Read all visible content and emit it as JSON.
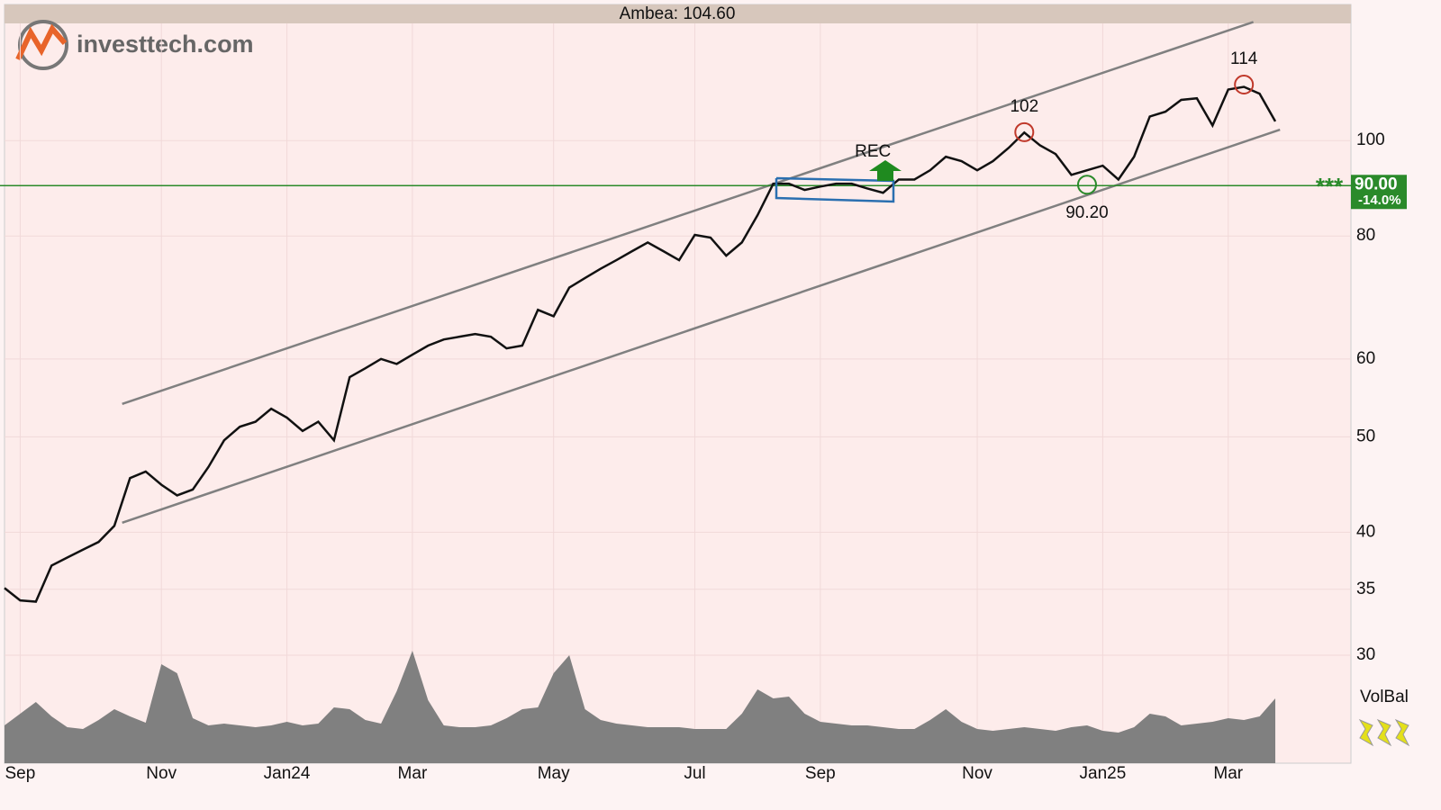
{
  "chart_data": {
    "type": "line",
    "title": "Ambea: 104.60",
    "logo": "investtech.com",
    "log_scale": true,
    "grid": true,
    "ylim": [
      23.3,
      131
    ],
    "yticks": [
      30,
      35,
      40,
      50,
      60,
      80,
      100
    ],
    "categories": [
      null,
      "Sep",
      null,
      null,
      null,
      null,
      null,
      null,
      null,
      null,
      "Nov",
      null,
      null,
      null,
      null,
      null,
      null,
      null,
      "Jan24",
      null,
      null,
      null,
      null,
      null,
      null,
      null,
      "Mar",
      null,
      null,
      null,
      null,
      null,
      null,
      null,
      null,
      "May",
      null,
      null,
      null,
      null,
      null,
      null,
      null,
      null,
      "Jul",
      null,
      null,
      null,
      null,
      null,
      null,
      null,
      "Sep",
      null,
      null,
      null,
      null,
      null,
      null,
      null,
      null,
      null,
      "Nov",
      null,
      null,
      null,
      null,
      null,
      null,
      null,
      "Jan25",
      null,
      null,
      null,
      null,
      null,
      null,
      null,
      "Mar",
      null,
      null,
      null
    ],
    "series": [
      {
        "name": "Ambea",
        "color": "#111111",
        "values": [
          35.1,
          34.1,
          34.0,
          37.0,
          37.7,
          38.4,
          39.1,
          40.6,
          45.4,
          46.1,
          44.7,
          43.6,
          44.2,
          46.6,
          49.6,
          51.2,
          51.8,
          53.4,
          52.3,
          50.7,
          51.8,
          49.6,
          57.5,
          58.7,
          60.0,
          59.3,
          60.6,
          61.9,
          62.8,
          63.2,
          63.6,
          63.2,
          61.5,
          61.9,
          67.3,
          66.3,
          70.9,
          72.5,
          74.1,
          75.6,
          77.2,
          78.8,
          77.2,
          75.6,
          80.2,
          79.7,
          76.4,
          78.8,
          84.0,
          90.4,
          90.4,
          89.1,
          89.8,
          90.4,
          90.4,
          89.4,
          88.5,
          91.3,
          91.3,
          93.3,
          96.3,
          95.3,
          93.3,
          95.3,
          98.3,
          101.9,
          98.9,
          96.9,
          92.3,
          93.3,
          94.3,
          91.3,
          96.3,
          105.8,
          107,
          110,
          110.4,
          103.6,
          112.7,
          113.4,
          111.6,
          104.6
        ]
      }
    ],
    "volume_label": "VolBal",
    "volume_color": "#808080",
    "vlim": [
      0,
      130
    ],
    "volume": [
      42,
      55,
      68,
      52,
      40,
      38,
      48,
      60,
      52,
      45,
      110,
      100,
      50,
      42,
      44,
      42,
      40,
      42,
      46,
      42,
      44,
      62,
      60,
      48,
      44,
      80,
      125,
      70,
      42,
      40,
      40,
      42,
      50,
      60,
      62,
      100,
      120,
      60,
      48,
      44,
      42,
      40,
      40,
      40,
      38,
      38,
      38,
      55,
      82,
      72,
      74,
      55,
      46,
      44,
      42,
      42,
      40,
      38,
      38,
      48,
      60,
      46,
      38,
      36,
      38,
      40,
      38,
      36,
      40,
      42,
      36,
      34,
      40,
      55,
      52,
      42,
      44,
      46,
      50,
      48,
      52,
      72
    ],
    "channel": {
      "color": "#808080",
      "upper": [
        [
          7.5,
          54.0
        ],
        [
          79.6,
          132
        ]
      ],
      "lower": [
        [
          7.5,
          40.9
        ],
        [
          81.3,
          102.6
        ]
      ]
    },
    "support": {
      "value": 90,
      "label": "90.00",
      "change": -14.0,
      "change_label": "-14.0%",
      "stars": "***",
      "color": "#2a8a2a"
    },
    "annotations": [
      {
        "text": "102",
        "at": 65,
        "value": 102,
        "color": "#c0392b",
        "place": "above"
      },
      {
        "text": "114",
        "at": 79,
        "value": 114,
        "color": "#c0392b",
        "place": "above"
      },
      {
        "text": "90.20",
        "at": 69,
        "value": 90.2,
        "color": "#2a8a2a",
        "place": "below"
      }
    ],
    "signal": {
      "text": "REC",
      "at": 56.5,
      "value": 93
    }
  }
}
